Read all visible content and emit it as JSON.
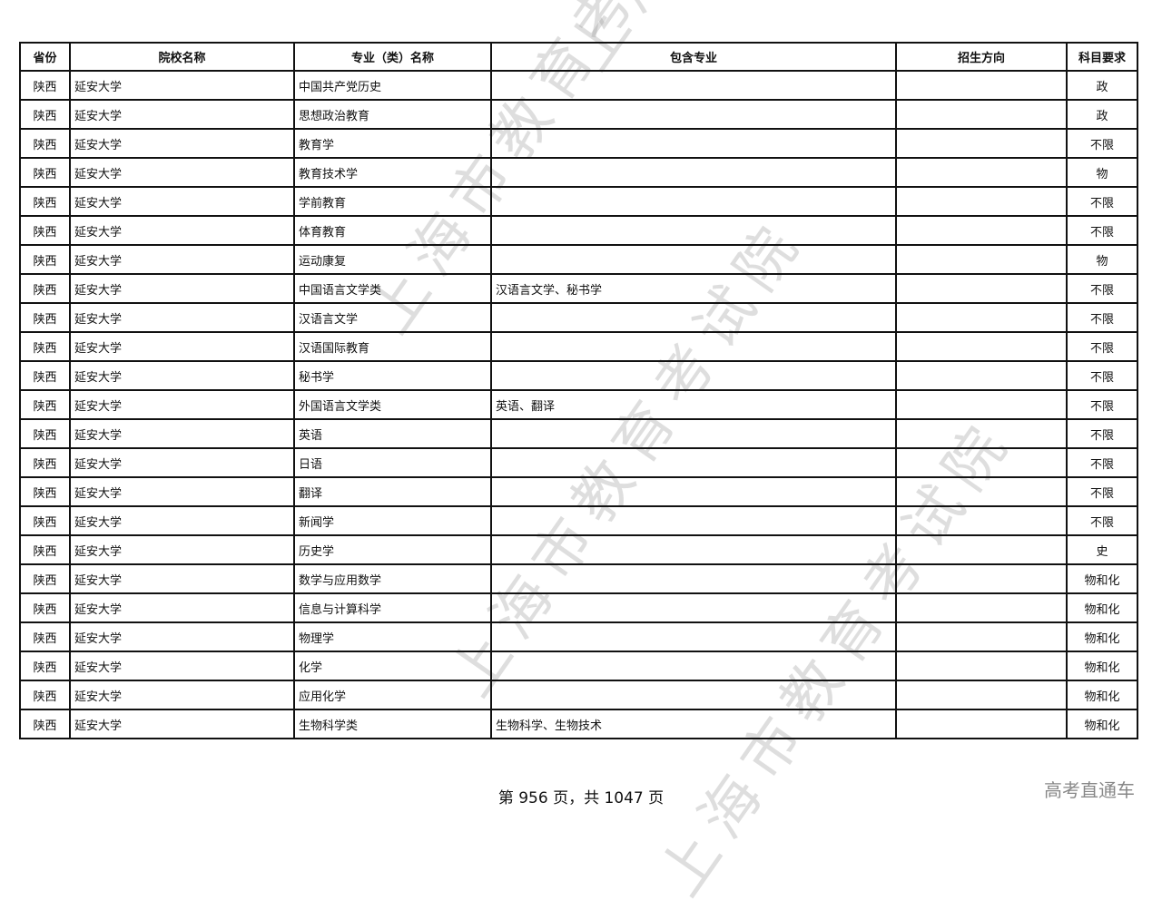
{
  "table": {
    "headers": [
      "省份",
      "院校名称",
      "专业（类）名称",
      "包含专业",
      "招生方向",
      "科目要求"
    ],
    "rows": [
      [
        "陕西",
        "延安大学",
        "中国共产党历史",
        "",
        "",
        "政"
      ],
      [
        "陕西",
        "延安大学",
        "思想政治教育",
        "",
        "",
        "政"
      ],
      [
        "陕西",
        "延安大学",
        "教育学",
        "",
        "",
        "不限"
      ],
      [
        "陕西",
        "延安大学",
        "教育技术学",
        "",
        "",
        "物"
      ],
      [
        "陕西",
        "延安大学",
        "学前教育",
        "",
        "",
        "不限"
      ],
      [
        "陕西",
        "延安大学",
        "体育教育",
        "",
        "",
        "不限"
      ],
      [
        "陕西",
        "延安大学",
        "运动康复",
        "",
        "",
        "物"
      ],
      [
        "陕西",
        "延安大学",
        "中国语言文学类",
        "汉语言文学、秘书学",
        "",
        "不限"
      ],
      [
        "陕西",
        "延安大学",
        "汉语言文学",
        "",
        "",
        "不限"
      ],
      [
        "陕西",
        "延安大学",
        "汉语国际教育",
        "",
        "",
        "不限"
      ],
      [
        "陕西",
        "延安大学",
        "秘书学",
        "",
        "",
        "不限"
      ],
      [
        "陕西",
        "延安大学",
        "外国语言文学类",
        "英语、翻译",
        "",
        "不限"
      ],
      [
        "陕西",
        "延安大学",
        "英语",
        "",
        "",
        "不限"
      ],
      [
        "陕西",
        "延安大学",
        "日语",
        "",
        "",
        "不限"
      ],
      [
        "陕西",
        "延安大学",
        "翻译",
        "",
        "",
        "不限"
      ],
      [
        "陕西",
        "延安大学",
        "新闻学",
        "",
        "",
        "不限"
      ],
      [
        "陕西",
        "延安大学",
        "历史学",
        "",
        "",
        "史"
      ],
      [
        "陕西",
        "延安大学",
        "数学与应用数学",
        "",
        "",
        "物和化"
      ],
      [
        "陕西",
        "延安大学",
        "信息与计算科学",
        "",
        "",
        "物和化"
      ],
      [
        "陕西",
        "延安大学",
        "物理学",
        "",
        "",
        "物和化"
      ],
      [
        "陕西",
        "延安大学",
        "化学",
        "",
        "",
        "物和化"
      ],
      [
        "陕西",
        "延安大学",
        "应用化学",
        "",
        "",
        "物和化"
      ],
      [
        "陕西",
        "延安大学",
        "生物科学类",
        "生物科学、生物技术",
        "",
        "物和化"
      ]
    ]
  },
  "footer": "第 956 页，共 1047 页",
  "brand": "高考直通车",
  "watermark": "上海市教育考试院"
}
